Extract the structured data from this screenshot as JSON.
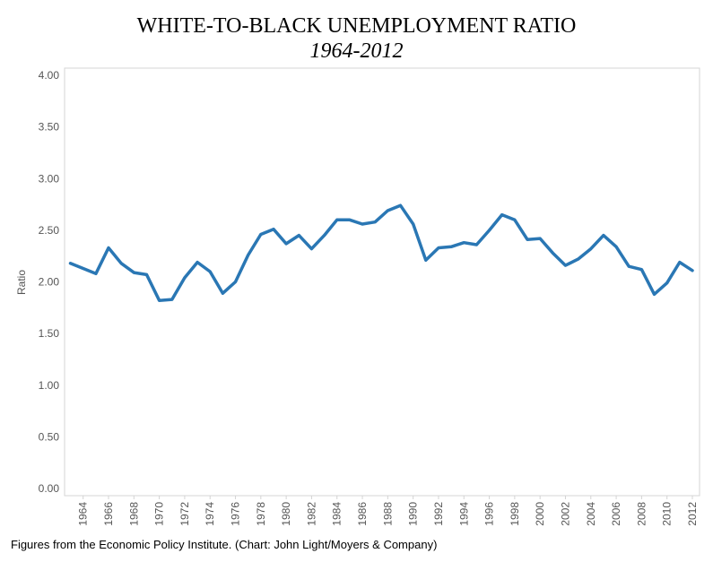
{
  "chart_data": {
    "type": "line",
    "title": "WHITE-TO-BLACK UNEMPLOYMENT RATIO",
    "subtitle": "1964-2012",
    "ylabel": "Ratio",
    "xlabel": "",
    "ylim": [
      0,
      4
    ],
    "yticks": [
      "0.00",
      "0.50",
      "1.00",
      "1.50",
      "2.00",
      "2.50",
      "3.00",
      "3.50",
      "4.00"
    ],
    "xticks": [
      "1964",
      "1966",
      "1968",
      "1970",
      "1972",
      "1974",
      "1976",
      "1978",
      "1980",
      "1982",
      "1984",
      "1986",
      "1988",
      "1990",
      "1992",
      "1994",
      "1996",
      "1998",
      "2000",
      "2002",
      "2004",
      "2006",
      "2008",
      "2010",
      "2012"
    ],
    "x": [
      1963,
      1964,
      1965,
      1966,
      1967,
      1968,
      1969,
      1970,
      1971,
      1972,
      1973,
      1974,
      1975,
      1976,
      1977,
      1978,
      1979,
      1980,
      1981,
      1982,
      1983,
      1984,
      1985,
      1986,
      1987,
      1988,
      1989,
      1990,
      1991,
      1992,
      1993,
      1994,
      1995,
      1996,
      1997,
      1998,
      1999,
      2000,
      2001,
      2002,
      2003,
      2004,
      2005,
      2006,
      2007,
      2008,
      2009,
      2010,
      2011,
      2012
    ],
    "values": [
      2.18,
      2.13,
      2.08,
      2.33,
      2.18,
      2.09,
      2.07,
      1.82,
      1.83,
      2.04,
      2.19,
      2.1,
      1.89,
      2.0,
      2.26,
      2.46,
      2.51,
      2.37,
      2.45,
      2.32,
      2.45,
      2.6,
      2.6,
      2.56,
      2.58,
      2.69,
      2.74,
      2.56,
      2.21,
      2.33,
      2.34,
      2.38,
      2.36,
      2.5,
      2.65,
      2.6,
      2.41,
      2.42,
      2.28,
      2.16,
      2.22,
      2.32,
      2.45,
      2.34,
      2.15,
      2.12,
      1.88,
      1.99,
      2.19,
      2.11
    ],
    "line_color": "#2a77b4",
    "grid": false
  },
  "footer": "Figures from the Economic Policy Institute. (Chart: John Light/Moyers & Company)"
}
